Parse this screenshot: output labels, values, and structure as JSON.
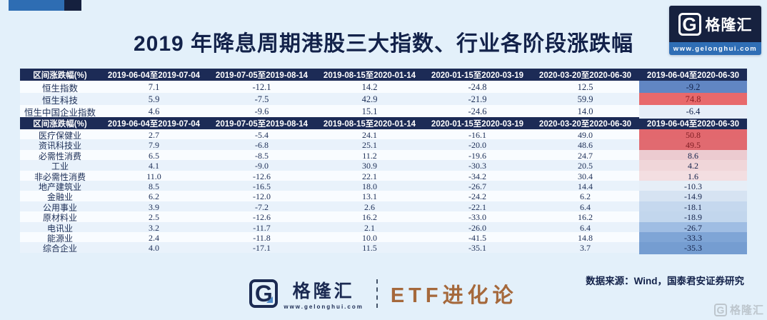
{
  "page": {
    "title": "2019 年降息周期港股三大指数、行业各阶段涨跌幅",
    "bg_color": "#e3f0fa",
    "header_navy": "#1c2b56",
    "accent_blue": "#2e6db3"
  },
  "brand_badge": {
    "g_glyph": "G",
    "name": "格隆汇",
    "url": "www.gelonghui.com"
  },
  "index_table": {
    "corner_label": "区间涨跌幅(%)",
    "columns": [
      "2019-06-04至2019-07-04",
      "2019-07-05至2019-08-14",
      "2019-08-15至2020-01-14",
      "2020-01-15至2020-03-19",
      "2020-03-20至2020-06-30",
      "2019-06-04至2020-06-30"
    ],
    "rows": [
      {
        "label": "恒生指数",
        "values": [
          "7.1",
          "-12.1",
          "14.2",
          "-24.8",
          "12.5",
          "-9.2"
        ],
        "last_bg": "#6186c3",
        "last_fg": "#13224a"
      },
      {
        "label": "恒生科技",
        "values": [
          "5.9",
          "-7.5",
          "42.9",
          "-21.9",
          "59.9",
          "74.8"
        ],
        "last_bg": "#e8696b",
        "last_fg": "#8c2025"
      },
      {
        "label": "恒生中国企业指数",
        "values": [
          "4.6",
          "-9.6",
          "15.1",
          "-24.6",
          "14.0",
          "-6.4"
        ],
        "last_bg": "#e6eef8",
        "last_fg": "#13224a"
      }
    ]
  },
  "industry_table": {
    "corner_label": "区间涨跌幅(%)",
    "columns": [
      "2019-06-04至2019-07-04",
      "2019-07-05至2019-08-14",
      "2019-08-15至2020-01-14",
      "2020-01-15至2020-03-19",
      "2020-03-20至2020-06-30",
      "2019-06-04至2020-06-30"
    ],
    "rows": [
      {
        "label": "医疗保健业",
        "values": [
          "2.7",
          "-5.4",
          "24.1",
          "-16.1",
          "49.0",
          "50.8"
        ],
        "last_bg": "#e2686e",
        "last_fg": "#7e1c22"
      },
      {
        "label": "资讯科技业",
        "values": [
          "7.9",
          "-6.8",
          "25.1",
          "-20.0",
          "48.6",
          "49.5"
        ],
        "last_bg": "#e16a70",
        "last_fg": "#7e1c22"
      },
      {
        "label": "必需性消费",
        "values": [
          "6.5",
          "-8.5",
          "11.2",
          "-19.6",
          "24.7",
          "8.6"
        ],
        "last_bg": "#eccbd0",
        "last_fg": "#13224a"
      },
      {
        "label": "工业",
        "values": [
          "4.1",
          "-9.0",
          "30.9",
          "-30.3",
          "20.5",
          "4.2"
        ],
        "last_bg": "#f0d6d9",
        "last_fg": "#13224a"
      },
      {
        "label": "非必需性消费",
        "values": [
          "11.0",
          "-12.6",
          "22.1",
          "-34.2",
          "30.4",
          "1.6"
        ],
        "last_bg": "#f3dee1",
        "last_fg": "#13224a"
      },
      {
        "label": "地产建筑业",
        "values": [
          "8.5",
          "-16.5",
          "18.0",
          "-26.7",
          "14.4",
          "-10.3"
        ],
        "last_bg": "#e6eef7",
        "last_fg": "#13224a"
      },
      {
        "label": "金融业",
        "values": [
          "6.2",
          "-12.0",
          "13.1",
          "-24.2",
          "6.2",
          "-14.9"
        ],
        "last_bg": "#d6e3f2",
        "last_fg": "#13224a"
      },
      {
        "label": "公用事业",
        "values": [
          "3.9",
          "-7.2",
          "2.6",
          "-22.1",
          "6.4",
          "-18.1"
        ],
        "last_bg": "#c5d8ee",
        "last_fg": "#13224a"
      },
      {
        "label": "原材料业",
        "values": [
          "2.5",
          "-12.6",
          "16.2",
          "-33.0",
          "16.2",
          "-18.9"
        ],
        "last_bg": "#c2d6ed",
        "last_fg": "#13224a"
      },
      {
        "label": "电讯业",
        "values": [
          "3.2",
          "-11.7",
          "2.1",
          "-26.0",
          "6.4",
          "-26.7"
        ],
        "last_bg": "#9fbde3",
        "last_fg": "#13224a"
      },
      {
        "label": "能源业",
        "values": [
          "2.4",
          "-11.8",
          "10.0",
          "-41.5",
          "14.8",
          "-33.3"
        ],
        "last_bg": "#7fa5d6",
        "last_fg": "#13224a"
      },
      {
        "label": "综合企业",
        "values": [
          "4.0",
          "-17.1",
          "11.5",
          "-35.1",
          "3.7",
          "-35.3"
        ],
        "last_bg": "#759dd1",
        "last_fg": "#13224a"
      }
    ]
  },
  "footer": {
    "logo_g": "G",
    "logo_name": "格隆汇",
    "logo_url": "www.gelonghui.com",
    "program": "ETF进化论",
    "source": "数据来源：Wind，国泰君安证券研究",
    "watermark_g": "G",
    "watermark_text": "格隆汇"
  },
  "chart_data": {
    "type": "table",
    "title": "2019 年降息周期港股三大指数、行业各阶段涨跌幅",
    "unit": "区间涨跌幅(%)",
    "columns": [
      "2019-06-04至2019-07-04",
      "2019-07-05至2019-08-14",
      "2019-08-15至2020-01-14",
      "2020-01-15至2020-03-19",
      "2020-03-20至2020-06-30",
      "2019-06-04至2020-06-30"
    ],
    "index_rows": [
      {
        "name": "恒生指数",
        "values": [
          7.1,
          -12.1,
          14.2,
          -24.8,
          12.5,
          -9.2
        ]
      },
      {
        "name": "恒生科技",
        "values": [
          5.9,
          -7.5,
          42.9,
          -21.9,
          59.9,
          74.8
        ]
      },
      {
        "name": "恒生中国企业指数",
        "values": [
          4.6,
          -9.6,
          15.1,
          -24.6,
          14.0,
          -6.4
        ]
      }
    ],
    "industry_rows": [
      {
        "name": "医疗保健业",
        "values": [
          2.7,
          -5.4,
          24.1,
          -16.1,
          49.0,
          50.8
        ]
      },
      {
        "name": "资讯科技业",
        "values": [
          7.9,
          -6.8,
          25.1,
          -20.0,
          48.6,
          49.5
        ]
      },
      {
        "name": "必需性消费",
        "values": [
          6.5,
          -8.5,
          11.2,
          -19.6,
          24.7,
          8.6
        ]
      },
      {
        "name": "工业",
        "values": [
          4.1,
          -9.0,
          30.9,
          -30.3,
          20.5,
          4.2
        ]
      },
      {
        "name": "非必需性消费",
        "values": [
          11.0,
          -12.6,
          22.1,
          -34.2,
          30.4,
          1.6
        ]
      },
      {
        "name": "地产建筑业",
        "values": [
          8.5,
          -16.5,
          18.0,
          -26.7,
          14.4,
          -10.3
        ]
      },
      {
        "name": "金融业",
        "values": [
          6.2,
          -12.0,
          13.1,
          -24.2,
          6.2,
          -14.9
        ]
      },
      {
        "name": "公用事业",
        "values": [
          3.9,
          -7.2,
          2.6,
          -22.1,
          6.4,
          -18.1
        ]
      },
      {
        "name": "原材料业",
        "values": [
          2.5,
          -12.6,
          16.2,
          -33.0,
          16.2,
          -18.9
        ]
      },
      {
        "name": "电讯业",
        "values": [
          3.2,
          -11.7,
          2.1,
          -26.0,
          6.4,
          -26.7
        ]
      },
      {
        "name": "能源业",
        "values": [
          2.4,
          -11.8,
          10.0,
          -41.5,
          14.8,
          -33.3
        ]
      },
      {
        "name": "综合企业",
        "values": [
          4.0,
          -17.1,
          11.5,
          -35.1,
          3.7,
          -35.3
        ]
      }
    ],
    "notes": "最后一列按涨跌幅红(涨)蓝(跌)热力着色；数据来源：Wind，国泰君安证券研究"
  }
}
